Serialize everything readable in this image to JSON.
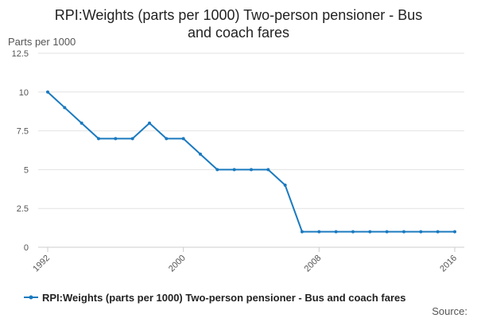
{
  "chart_data": {
    "type": "line",
    "title_lines": [
      "RPI:Weights (parts per 1000) Two-person pensioner - Bus",
      "and coach fares"
    ],
    "ylabel": "Parts per 1000",
    "xlabel": "",
    "ylim": [
      0,
      12.5
    ],
    "y_ticks": [
      "0",
      "2.5",
      "5",
      "7.5",
      "10",
      "12.5"
    ],
    "y_tick_values": [
      0,
      2.5,
      5,
      7.5,
      10,
      12.5
    ],
    "xlim": [
      1992,
      2016
    ],
    "x_ticks": [
      "1992",
      "2000",
      "2008",
      "2016"
    ],
    "x_tick_values": [
      1992,
      2000,
      2008,
      2016
    ],
    "grid": "horizontal",
    "legend_position": "bottom",
    "color": "#1a7abf",
    "x": [
      1992,
      1993,
      1994,
      1995,
      1996,
      1997,
      1998,
      1999,
      2000,
      2001,
      2002,
      2003,
      2004,
      2005,
      2006,
      2007,
      2008,
      2009,
      2010,
      2011,
      2012,
      2013,
      2014,
      2015,
      2016
    ],
    "series": [
      {
        "name": "RPI:Weights (parts per 1000) Two-person pensioner - Bus and coach fares",
        "values": [
          10,
          9,
          8,
          7,
          7,
          7,
          8,
          7,
          7,
          6,
          5,
          5,
          5,
          5,
          4,
          1,
          1,
          1,
          1,
          1,
          1,
          1,
          1,
          1,
          1
        ]
      }
    ]
  },
  "footer": {
    "source_label": "Source:"
  }
}
